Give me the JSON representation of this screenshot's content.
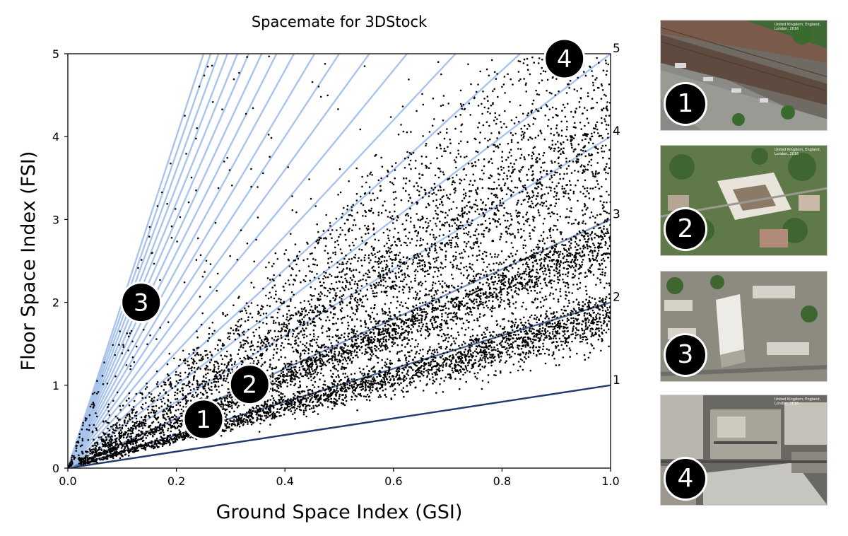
{
  "chart_data": {
    "type": "scatter",
    "title": "Spacemate for 3DStock",
    "xlabel": "Ground Space Index (GSI)",
    "ylabel": "Floor Space Index (FSI)",
    "xlim": [
      0.0,
      1.0
    ],
    "ylim": [
      0,
      5
    ],
    "x_ticks": [
      "0.0",
      "0.2",
      "0.4",
      "0.6",
      "0.8",
      "1.0"
    ],
    "y_ticks": [
      "0",
      "1",
      "2",
      "3",
      "4",
      "5"
    ],
    "grid": false,
    "reference_lines": {
      "description_slopes": [
        1,
        2,
        3,
        4,
        5,
        6,
        7,
        8,
        9,
        10,
        11,
        12,
        13,
        14,
        15,
        16,
        17,
        18,
        19,
        20
      ],
      "labels": [
        "1",
        "2",
        "3",
        "4",
        "5"
      ],
      "label_slopes": [
        1,
        2,
        3,
        4,
        5
      ],
      "color_low": "#1f3a6e",
      "color_high": "#a9c4ec"
    },
    "point_color": "#000000",
    "markers": [
      {
        "label": "1",
        "x": 0.25,
        "y": 0.59
      },
      {
        "label": "2",
        "x": 0.335,
        "y": 1.01
      },
      {
        "label": "3",
        "x": 0.135,
        "y": 2.0
      },
      {
        "label": "4",
        "x": 0.915,
        "y": 4.94
      }
    ]
  },
  "photos": [
    {
      "badge": "1",
      "caption": "United Kingdom, England, London, 2016"
    },
    {
      "badge": "2",
      "caption": "United Kingdom, England, London, 2016"
    },
    {
      "badge": "3",
      "caption": ""
    },
    {
      "badge": "4",
      "caption": "United Kingdom, England, London, 2016"
    }
  ]
}
